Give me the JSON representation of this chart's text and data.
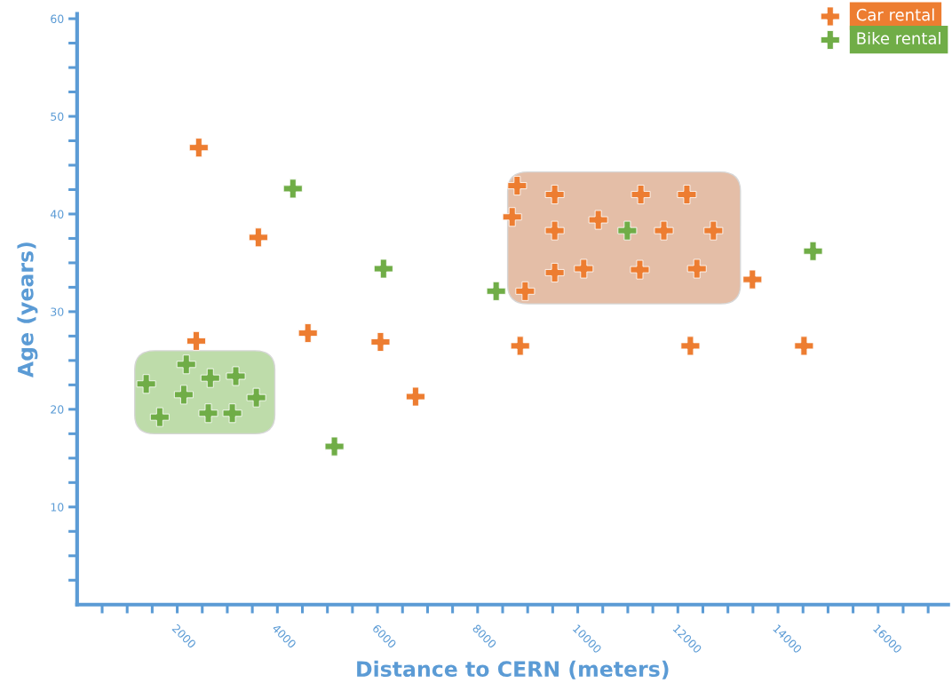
{
  "chart_data": {
    "type": "scatter",
    "xlabel": "Distance to CERN (meters)",
    "ylabel": "Age (years)",
    "xlim": [
      0,
      17400
    ],
    "ylim": [
      0,
      60.5
    ],
    "xticks": [
      {
        "value": 500,
        "label": null
      },
      {
        "value": 1000,
        "label": null
      },
      {
        "value": 1500,
        "label": null
      },
      2000,
      {
        "value": 2500,
        "label": null
      },
      {
        "value": 3000,
        "label": null
      },
      {
        "value": 3500,
        "label": null
      },
      4000,
      {
        "value": 4500,
        "label": null
      },
      {
        "value": 5000,
        "label": null
      },
      {
        "value": 5500,
        "label": null
      },
      6000,
      {
        "value": 6500,
        "label": null
      },
      {
        "value": 7000,
        "label": null
      },
      {
        "value": 7500,
        "label": null
      },
      8000,
      {
        "value": 8500,
        "label": null
      },
      {
        "value": 9000,
        "label": null
      },
      {
        "value": 9500,
        "label": null
      },
      10000,
      {
        "value": 10500,
        "label": null
      },
      {
        "value": 11000,
        "label": null
      },
      {
        "value": 11500,
        "label": null
      },
      12000,
      {
        "value": 12500,
        "label": null
      },
      {
        "value": 13000,
        "label": null
      },
      {
        "value": 13500,
        "label": null
      },
      14000,
      {
        "value": 14500,
        "label": null
      },
      {
        "value": 15000,
        "label": null
      },
      {
        "value": 15500,
        "label": null
      },
      16000,
      {
        "value": 16500,
        "label": null
      },
      {
        "value": 17000,
        "label": null
      }
    ],
    "yticks": [
      {
        "value": 2.5,
        "label": null
      },
      {
        "value": 5,
        "label": null
      },
      {
        "value": 7.5,
        "label": null
      },
      10,
      {
        "value": 12.5,
        "label": null
      },
      {
        "value": 15,
        "label": null
      },
      {
        "value": 17.5,
        "label": null
      },
      20,
      {
        "value": 22.5,
        "label": null
      },
      {
        "value": 25,
        "label": null
      },
      {
        "value": 27.5,
        "label": null
      },
      30,
      {
        "value": 32.5,
        "label": null
      },
      {
        "value": 35,
        "label": null
      },
      {
        "value": 37.5,
        "label": null
      },
      40,
      {
        "value": 42.5,
        "label": null
      },
      {
        "value": 45,
        "label": null
      },
      {
        "value": 47.5,
        "label": null
      },
      50,
      {
        "value": 52.5,
        "label": null
      },
      {
        "value": 55,
        "label": null
      },
      {
        "value": 57.5,
        "label": null
      },
      60
    ],
    "grid": false,
    "legend": "top right",
    "marker": "cross",
    "series": [
      {
        "name": "Car rental",
        "color": "#ed7d31",
        "x": [
          2430,
          3620,
          2380,
          4610,
          6060,
          6760,
          8790,
          8690,
          9540,
          9540,
          10410,
          9540,
          10120,
          11260,
          11240,
          11720,
          12180,
          12710,
          12380,
          8950,
          8850,
          12250,
          13490,
          14520
        ],
        "values": [
          46.8,
          37.6,
          27.0,
          27.8,
          26.9,
          21.3,
          42.9,
          39.7,
          42.0,
          38.3,
          39.4,
          34.0,
          34.4,
          42.0,
          34.3,
          38.3,
          42.0,
          38.3,
          34.4,
          32.1,
          26.5,
          26.5,
          33.3,
          26.5
        ]
      },
      {
        "name": "Bike rental",
        "color": "#70ad47",
        "x": [
          4310,
          6120,
          8370,
          10990,
          14700,
          5140,
          1380,
          1650,
          2180,
          2130,
          2660,
          2620,
          3170,
          3100,
          3580
        ],
        "values": [
          42.6,
          34.4,
          32.1,
          38.3,
          36.2,
          16.2,
          22.6,
          19.2,
          24.6,
          21.5,
          23.2,
          19.6,
          23.4,
          19.6,
          21.2
        ]
      }
    ]
  }
}
